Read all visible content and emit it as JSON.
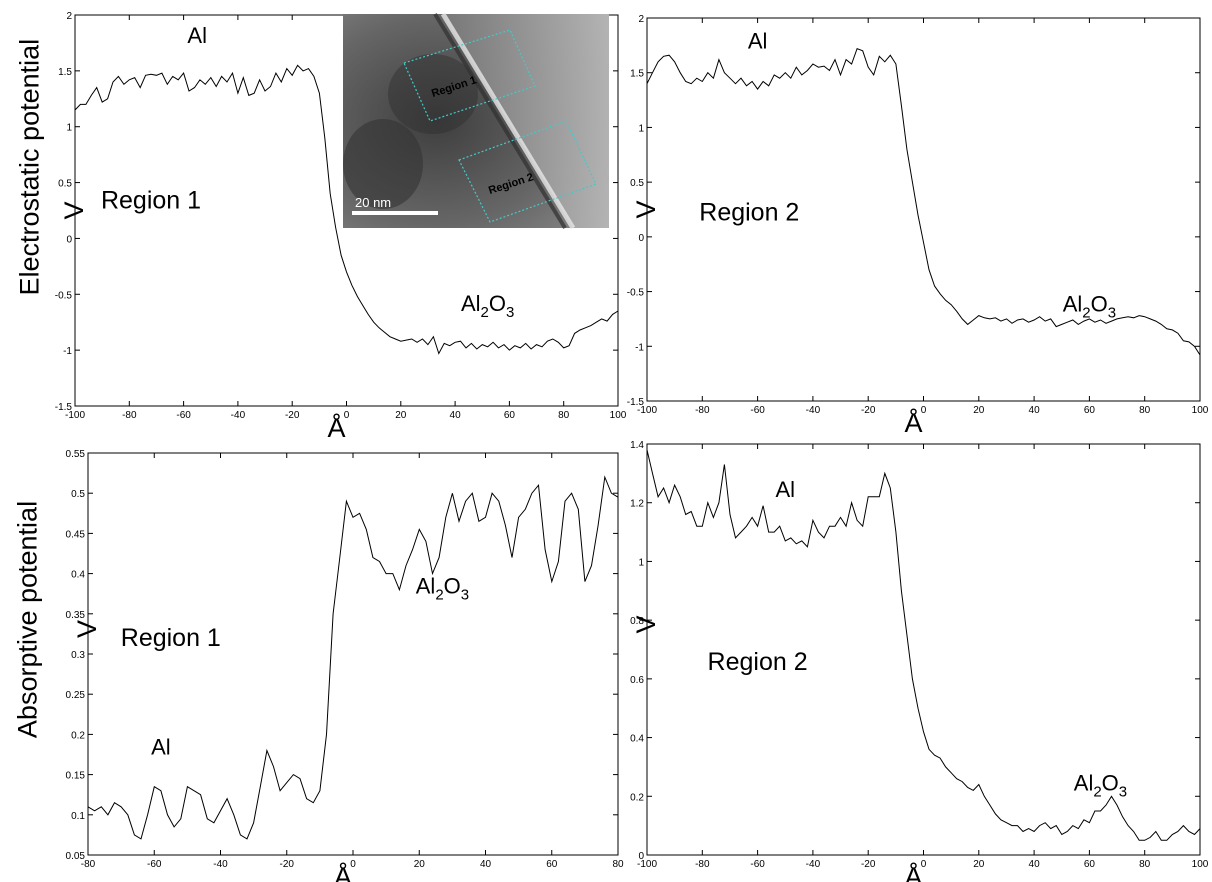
{
  "row_labels": {
    "top": "Electrostatic potential",
    "bottom": "Absorptive potential"
  },
  "inset": {
    "box1_label": "Region 1",
    "box2_label": "Region 2",
    "scale_label": "20  nm",
    "box_color": "#46c8c8"
  },
  "chart_data": [
    {
      "type": "line",
      "panel": "top-left",
      "xlabel": "Å",
      "ylabel": "V",
      "xlim": [
        -100,
        100
      ],
      "ylim": [
        -1.5,
        2
      ],
      "xticks": [
        -100,
        -80,
        -60,
        -40,
        -20,
        0,
        20,
        40,
        60,
        80,
        100
      ],
      "yticks": [
        -1.5,
        -1,
        -0.5,
        0,
        0.5,
        1,
        1.5,
        2
      ],
      "grid": false,
      "annotations": [
        {
          "text": "Al",
          "x": -55,
          "y": 1.75
        },
        {
          "text": "Region 1",
          "x": -72,
          "y": 0.27
        },
        {
          "text": "Al",
          "sub": "2",
          "text2": "O",
          "sub2": "3",
          "x": 52,
          "y": -0.65
        }
      ],
      "series": [
        {
          "x": [
            -100,
            -98,
            -96,
            -94,
            -92,
            -90,
            -88,
            -86,
            -84,
            -82,
            -80,
            -78,
            -76,
            -74,
            -72,
            -70,
            -68,
            -66,
            -64,
            -62,
            -60,
            -58,
            -56,
            -54,
            -52,
            -50,
            -48,
            -46,
            -44,
            -42,
            -40,
            -38,
            -36,
            -34,
            -32,
            -30,
            -28,
            -26,
            -24,
            -22,
            -20,
            -18,
            -16,
            -14,
            -12,
            -10,
            -8,
            -6,
            -4,
            -2,
            0,
            2,
            4,
            6,
            8,
            10,
            12,
            14,
            16,
            18,
            20,
            22,
            24,
            26,
            28,
            30,
            32,
            34,
            36,
            38,
            40,
            42,
            44,
            46,
            48,
            50,
            52,
            54,
            56,
            58,
            60,
            62,
            64,
            66,
            68,
            70,
            72,
            74,
            76,
            78,
            80,
            82,
            84,
            86,
            88,
            90,
            92,
            94,
            96,
            98,
            100
          ],
          "y": [
            1.15,
            1.2,
            1.2,
            1.28,
            1.35,
            1.22,
            1.25,
            1.4,
            1.45,
            1.38,
            1.42,
            1.44,
            1.35,
            1.46,
            1.47,
            1.46,
            1.48,
            1.38,
            1.45,
            1.42,
            1.48,
            1.32,
            1.35,
            1.42,
            1.38,
            1.44,
            1.36,
            1.45,
            1.4,
            1.48,
            1.3,
            1.44,
            1.28,
            1.3,
            1.42,
            1.32,
            1.36,
            1.48,
            1.4,
            1.52,
            1.46,
            1.55,
            1.5,
            1.52,
            1.45,
            1.3,
            0.9,
            0.4,
            0.1,
            -0.15,
            -0.3,
            -0.42,
            -0.52,
            -0.6,
            -0.68,
            -0.75,
            -0.8,
            -0.84,
            -0.88,
            -0.9,
            -0.92,
            -0.91,
            -0.9,
            -0.93,
            -0.9,
            -0.95,
            -0.88,
            -1.03,
            -0.94,
            -0.96,
            -0.93,
            -0.92,
            -0.98,
            -0.94,
            -0.99,
            -0.95,
            -0.97,
            -0.93,
            -0.98,
            -0.95,
            -1.0,
            -0.96,
            -0.98,
            -0.94,
            -0.99,
            -0.95,
            -0.97,
            -0.92,
            -0.9,
            -0.93,
            -0.98,
            -0.96,
            -0.85,
            -0.82,
            -0.8,
            -0.78,
            -0.75,
            -0.72,
            -0.74,
            -0.68,
            -0.65
          ]
        }
      ]
    },
    {
      "type": "line",
      "panel": "top-right",
      "xlabel": "Å",
      "ylabel": "V",
      "xlim": [
        -100,
        100
      ],
      "ylim": [
        -1.5,
        2
      ],
      "xticks": [
        -100,
        -80,
        -60,
        -40,
        -20,
        0,
        20,
        40,
        60,
        80,
        100
      ],
      "yticks": [
        -1.5,
        -1,
        -0.5,
        0,
        0.5,
        1,
        1.5,
        2
      ],
      "grid": false,
      "annotations": [
        {
          "text": "Al",
          "x": -60,
          "y": 1.72
        },
        {
          "text": "Region 2",
          "x": -63,
          "y": 0.15
        },
        {
          "text": "Al",
          "sub": "2",
          "text2": "O",
          "sub2": "3",
          "x": 60,
          "y": -0.68
        }
      ],
      "series": [
        {
          "x": [
            -100,
            -98,
            -96,
            -94,
            -92,
            -90,
            -88,
            -86,
            -84,
            -82,
            -80,
            -78,
            -76,
            -74,
            -72,
            -70,
            -68,
            -66,
            -64,
            -62,
            -60,
            -58,
            -56,
            -54,
            -52,
            -50,
            -48,
            -46,
            -44,
            -42,
            -40,
            -38,
            -36,
            -34,
            -32,
            -30,
            -28,
            -26,
            -24,
            -22,
            -20,
            -18,
            -16,
            -14,
            -12,
            -10,
            -8,
            -6,
            -4,
            -2,
            0,
            2,
            4,
            6,
            8,
            10,
            12,
            14,
            16,
            18,
            20,
            22,
            24,
            26,
            28,
            30,
            32,
            34,
            36,
            38,
            40,
            42,
            44,
            46,
            48,
            50,
            52,
            54,
            56,
            58,
            60,
            62,
            64,
            66,
            68,
            70,
            72,
            74,
            76,
            78,
            80,
            82,
            84,
            86,
            88,
            90,
            92,
            94,
            96,
            98,
            100
          ],
          "y": [
            1.4,
            1.5,
            1.6,
            1.65,
            1.66,
            1.6,
            1.5,
            1.42,
            1.4,
            1.45,
            1.42,
            1.5,
            1.45,
            1.62,
            1.5,
            1.45,
            1.4,
            1.45,
            1.38,
            1.42,
            1.35,
            1.42,
            1.38,
            1.48,
            1.45,
            1.5,
            1.45,
            1.55,
            1.48,
            1.52,
            1.58,
            1.55,
            1.56,
            1.52,
            1.62,
            1.48,
            1.62,
            1.58,
            1.72,
            1.7,
            1.55,
            1.48,
            1.65,
            1.6,
            1.66,
            1.58,
            1.2,
            0.8,
            0.5,
            0.2,
            -0.05,
            -0.3,
            -0.45,
            -0.52,
            -0.58,
            -0.62,
            -0.68,
            -0.75,
            -0.8,
            -0.76,
            -0.72,
            -0.74,
            -0.75,
            -0.74,
            -0.77,
            -0.75,
            -0.79,
            -0.76,
            -0.75,
            -0.78,
            -0.76,
            -0.73,
            -0.77,
            -0.75,
            -0.82,
            -0.8,
            -0.78,
            -0.76,
            -0.8,
            -0.77,
            -0.75,
            -0.78,
            -0.76,
            -0.79,
            -0.77,
            -0.75,
            -0.74,
            -0.73,
            -0.74,
            -0.72,
            -0.73,
            -0.75,
            -0.77,
            -0.8,
            -0.84,
            -0.85,
            -0.88,
            -0.95,
            -0.96,
            -1.0,
            -1.08
          ]
        }
      ]
    },
    {
      "type": "line",
      "panel": "bottom-left",
      "xlabel": "Å",
      "ylabel": "V",
      "xlim": [
        -80,
        80
      ],
      "ylim": [
        0.05,
        0.55
      ],
      "xticks": [
        -80,
        -60,
        -40,
        -20,
        0,
        20,
        40,
        60,
        80
      ],
      "yticks": [
        0.05,
        0.1,
        0.15,
        0.2,
        0.25,
        0.3,
        0.35,
        0.4,
        0.45,
        0.5,
        0.55
      ],
      "grid": false,
      "annotations": [
        {
          "text": "Al",
          "x": -58,
          "y": 0.175
        },
        {
          "text": "Region 1",
          "x": -55,
          "y": 0.31
        },
        {
          "text": "Al",
          "sub": "2",
          "text2": "O",
          "sub2": "3",
          "x": 27,
          "y": 0.375
        }
      ],
      "series": [
        {
          "x": [
            -80,
            -78,
            -76,
            -74,
            -72,
            -70,
            -68,
            -66,
            -64,
            -62,
            -60,
            -58,
            -56,
            -54,
            -52,
            -50,
            -48,
            -46,
            -44,
            -42,
            -40,
            -38,
            -36,
            -34,
            -32,
            -30,
            -28,
            -26,
            -24,
            -22,
            -20,
            -18,
            -16,
            -14,
            -12,
            -10,
            -8,
            -6,
            -4,
            -2,
            0,
            2,
            4,
            6,
            8,
            10,
            12,
            14,
            16,
            18,
            20,
            22,
            24,
            26,
            28,
            30,
            32,
            34,
            36,
            38,
            40,
            42,
            44,
            46,
            48,
            50,
            52,
            54,
            56,
            58,
            60,
            62,
            64,
            66,
            68,
            70,
            72,
            74,
            76,
            78,
            80
          ],
          "y": [
            0.11,
            0.105,
            0.11,
            0.1,
            0.115,
            0.11,
            0.1,
            0.075,
            0.07,
            0.1,
            0.135,
            0.13,
            0.1,
            0.085,
            0.095,
            0.135,
            0.13,
            0.125,
            0.095,
            0.09,
            0.105,
            0.12,
            0.1,
            0.075,
            0.07,
            0.09,
            0.135,
            0.18,
            0.16,
            0.13,
            0.14,
            0.15,
            0.145,
            0.12,
            0.115,
            0.13,
            0.2,
            0.35,
            0.42,
            0.49,
            0.47,
            0.475,
            0.455,
            0.42,
            0.415,
            0.4,
            0.4,
            0.38,
            0.41,
            0.43,
            0.455,
            0.44,
            0.4,
            0.42,
            0.47,
            0.5,
            0.465,
            0.49,
            0.5,
            0.465,
            0.47,
            0.5,
            0.49,
            0.46,
            0.42,
            0.47,
            0.48,
            0.5,
            0.51,
            0.43,
            0.39,
            0.415,
            0.49,
            0.5,
            0.48,
            0.39,
            0.41,
            0.46,
            0.52,
            0.5,
            0.495
          ]
        }
      ]
    },
    {
      "type": "line",
      "panel": "bottom-right",
      "xlabel": "Å",
      "ylabel": "V",
      "xlim": [
        -100,
        100
      ],
      "ylim": [
        0,
        1.4
      ],
      "xticks": [
        -100,
        -80,
        -60,
        -40,
        -20,
        0,
        20,
        40,
        60,
        80,
        100
      ],
      "yticks": [
        0,
        0.2,
        0.4,
        0.6,
        0.8,
        1,
        1.2,
        1.4
      ],
      "grid": false,
      "annotations": [
        {
          "text": "Al",
          "x": -50,
          "y": 1.22
        },
        {
          "text": "Region 2",
          "x": -60,
          "y": 0.63
        },
        {
          "text": "Al",
          "sub": "2",
          "text2": "O",
          "sub2": "3",
          "x": 64,
          "y": 0.22
        }
      ],
      "series": [
        {
          "x": [
            -100,
            -98,
            -96,
            -94,
            -92,
            -90,
            -88,
            -86,
            -84,
            -82,
            -80,
            -78,
            -76,
            -74,
            -72,
            -70,
            -68,
            -66,
            -64,
            -62,
            -60,
            -58,
            -56,
            -54,
            -52,
            -50,
            -48,
            -46,
            -44,
            -42,
            -40,
            -38,
            -36,
            -34,
            -32,
            -30,
            -28,
            -26,
            -24,
            -22,
            -20,
            -18,
            -16,
            -14,
            -12,
            -10,
            -8,
            -6,
            -4,
            -2,
            0,
            2,
            4,
            6,
            8,
            10,
            12,
            14,
            16,
            18,
            20,
            22,
            24,
            26,
            28,
            30,
            32,
            34,
            36,
            38,
            40,
            42,
            44,
            46,
            48,
            50,
            52,
            54,
            56,
            58,
            60,
            62,
            64,
            66,
            68,
            70,
            72,
            74,
            76,
            78,
            80,
            82,
            84,
            86,
            88,
            90,
            92,
            94,
            96,
            98,
            100
          ],
          "y": [
            1.38,
            1.3,
            1.22,
            1.25,
            1.2,
            1.26,
            1.22,
            1.16,
            1.17,
            1.12,
            1.12,
            1.2,
            1.15,
            1.2,
            1.33,
            1.16,
            1.08,
            1.1,
            1.12,
            1.15,
            1.12,
            1.19,
            1.1,
            1.1,
            1.12,
            1.07,
            1.08,
            1.06,
            1.07,
            1.05,
            1.14,
            1.1,
            1.08,
            1.12,
            1.12,
            1.15,
            1.12,
            1.2,
            1.14,
            1.12,
            1.22,
            1.22,
            1.22,
            1.3,
            1.25,
            1.1,
            0.9,
            0.75,
            0.6,
            0.5,
            0.42,
            0.36,
            0.34,
            0.33,
            0.3,
            0.28,
            0.26,
            0.25,
            0.23,
            0.22,
            0.24,
            0.2,
            0.17,
            0.14,
            0.12,
            0.11,
            0.1,
            0.1,
            0.08,
            0.09,
            0.08,
            0.1,
            0.11,
            0.09,
            0.1,
            0.07,
            0.08,
            0.1,
            0.09,
            0.12,
            0.11,
            0.15,
            0.15,
            0.17,
            0.2,
            0.17,
            0.13,
            0.1,
            0.08,
            0.05,
            0.05,
            0.06,
            0.08,
            0.05,
            0.05,
            0.07,
            0.08,
            0.1,
            0.08,
            0.07,
            0.09
          ]
        }
      ]
    }
  ]
}
